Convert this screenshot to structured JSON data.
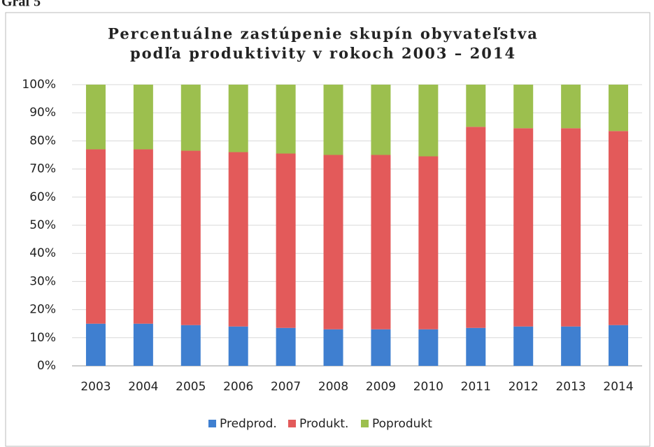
{
  "caption": "Graf 5",
  "chart_data": {
    "type": "stacked_bar",
    "title": [
      "Percentuálne zastúpenie skupín obyvateľstva",
      "podľa produktivity v rokoch 2003 – 2014"
    ],
    "categories": [
      "2003",
      "2004",
      "2005",
      "2006",
      "2007",
      "2008",
      "2009",
      "2010",
      "2011",
      "2012",
      "2013",
      "2014"
    ],
    "series": [
      {
        "name": "Predprod.",
        "color": "#3f7fd0",
        "values": [
          15,
          15,
          14.5,
          14,
          13.5,
          13,
          13,
          13,
          13.5,
          14,
          14,
          14.5
        ]
      },
      {
        "name": "Produkt.",
        "color": "#e35a5a",
        "values": [
          62,
          62,
          62,
          62,
          62,
          62,
          62,
          61.5,
          71.5,
          70.5,
          70.5,
          69
        ]
      },
      {
        "name": "Poprodukt",
        "color": "#9cbf4e",
        "values": [
          23,
          23,
          23.5,
          24,
          24.5,
          25,
          25,
          25.5,
          15,
          15.5,
          15.5,
          16.5
        ]
      }
    ],
    "ylim": [
      0,
      100
    ],
    "yticks": [
      {
        "value": 0,
        "label": "0%"
      },
      {
        "value": 10,
        "label": "10%"
      },
      {
        "value": 20,
        "label": "20%"
      },
      {
        "value": 30,
        "label": "30%"
      },
      {
        "value": 40,
        "label": "40%"
      },
      {
        "value": 50,
        "label": "50%"
      },
      {
        "value": 60,
        "label": "60%"
      },
      {
        "value": 70,
        "label": "70%"
      },
      {
        "value": 80,
        "label": "80%"
      },
      {
        "value": 90,
        "label": "90%"
      },
      {
        "value": 100,
        "label": "100%"
      }
    ],
    "grid": true,
    "legend": "bottom"
  }
}
